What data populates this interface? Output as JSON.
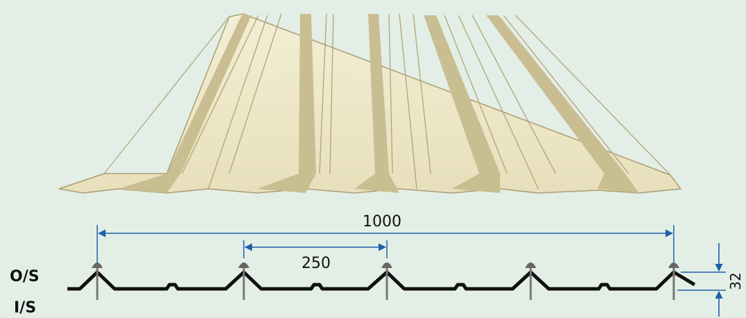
{
  "diagram": {
    "overall_width_label": "1000",
    "pitch_label": "250",
    "depth_label": "32",
    "outer_side_label": "O/S",
    "inner_side_label": "I/S"
  },
  "colors": {
    "background": "#e3efe6",
    "sheet_light": "#ede6c4",
    "sheet_shadow": "#c5b98e",
    "sheet_edge": "#a89d72",
    "dimension_line": "#1f5fa8",
    "profile": "#111111",
    "fastener": "#555555"
  },
  "icons": [
    "roof-sheet-illustration",
    "fastener-screw-icon"
  ]
}
